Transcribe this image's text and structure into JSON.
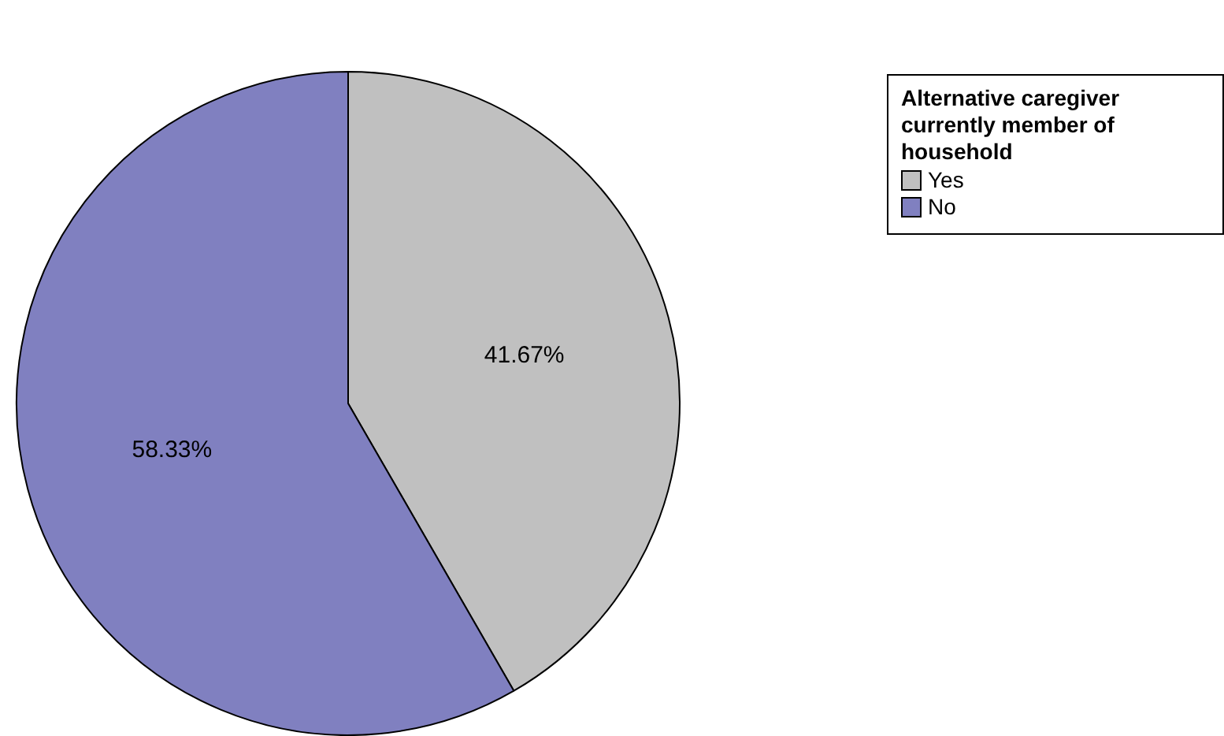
{
  "chart_data": {
    "type": "pie",
    "legend_title": "Alternative caregiver currently member of household",
    "categories": [
      "Yes",
      "No"
    ],
    "values": [
      41.67,
      58.33
    ],
    "colors": [
      "#c0c0c0",
      "#8080c0"
    ],
    "value_labels": [
      "41.67%",
      "58.33%"
    ],
    "legend": "top right"
  }
}
